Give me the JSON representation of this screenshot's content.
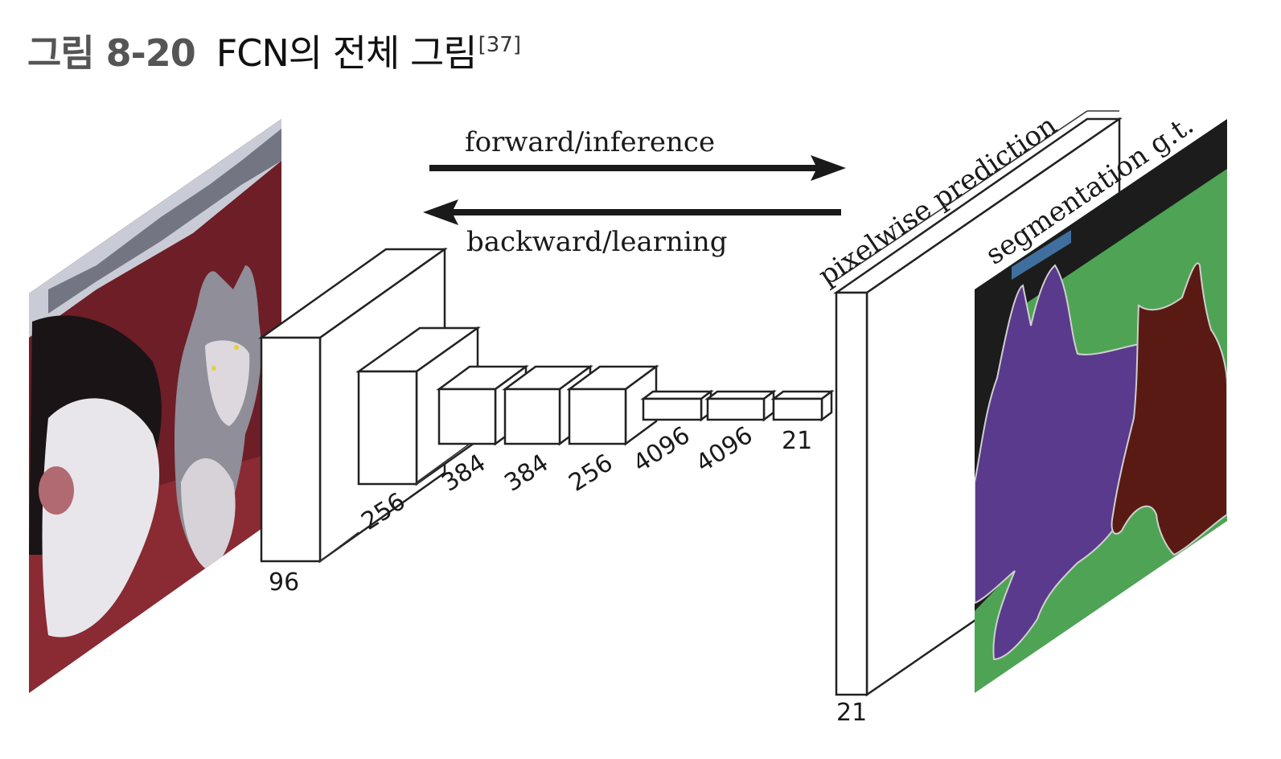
{
  "caption": {
    "figure_number": "그림 8-20",
    "title": "FCN의 전체 그림",
    "reference": "[37]"
  },
  "arrows": {
    "forward": "forward/inference",
    "backward": "backward/learning"
  },
  "layer_labels": {
    "conv1": "96",
    "conv2": "256",
    "conv3": "384",
    "conv4": "384",
    "conv5": "256",
    "fc6": "4096",
    "fc7": "4096",
    "fc8": "21",
    "prediction": "21"
  },
  "panel_labels": {
    "prediction": "pixelwise prediction",
    "ground_truth": "segmentation g.t."
  },
  "colors": {
    "dog_segment": "#5a3a8c",
    "cat_segment": "#5a1a14",
    "background_segment": "#4ea454",
    "void_segment": "#1c1c1c",
    "photo_wall": "#6e1e26",
    "highlight_bar": "#3f6f9e"
  }
}
